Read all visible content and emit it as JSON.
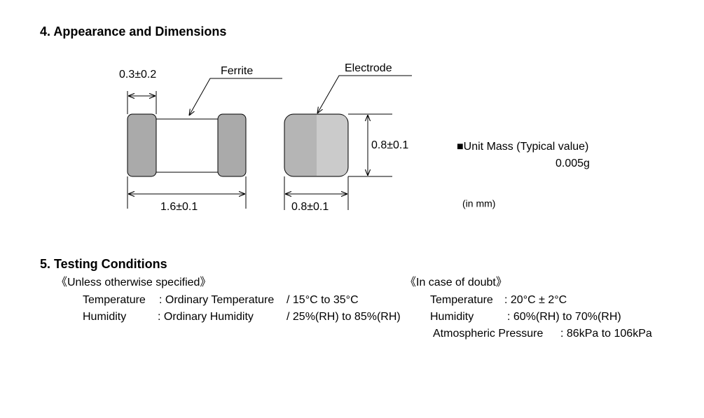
{
  "section4": {
    "title": "4. Appearance and Dimensions",
    "diagram": {
      "electrode_width": "0.3±0.2",
      "ferrite_label": "Ferrite",
      "length": "1.6±0.1",
      "electrode_label": "Electrode",
      "height": "0.8±0.1",
      "width": "0.8±0.1"
    },
    "unit_mass_label": "■Unit Mass (Typical value)",
    "unit_mass_value": "0.005g",
    "unit_note": "(in mm)"
  },
  "section5": {
    "title": "5. Testing Conditions",
    "left": {
      "heading": "《Unless otherwise specified》",
      "rows": [
        [
          "Temperature",
          ": Ordinary Temperature",
          "/ 15°C to 35°C"
        ],
        [
          "Humidity",
          ": Ordinary Humidity",
          "/ 25%(RH) to 85%(RH)"
        ]
      ]
    },
    "right": {
      "heading": "《In case of doubt》",
      "rows": [
        [
          "Temperature",
          ": 20°C ± 2°C"
        ],
        [
          "Humidity",
          ": 60%(RH) to 70%(RH)"
        ],
        [
          "Atmospheric Pressure",
          ": 86kPa to 106kPa"
        ]
      ]
    }
  }
}
